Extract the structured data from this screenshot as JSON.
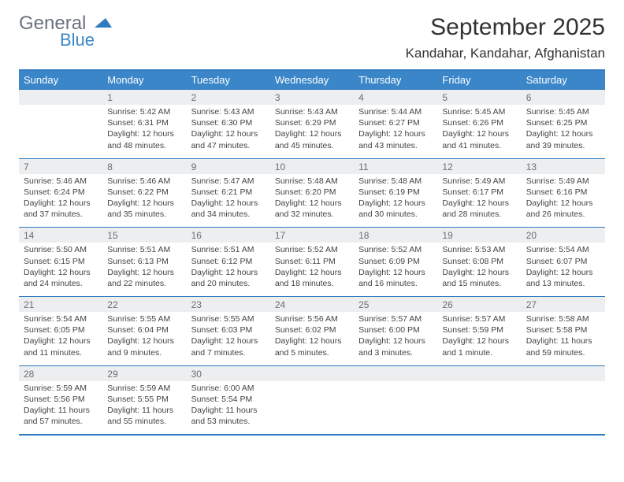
{
  "logo": {
    "text1": "General",
    "text2": "Blue"
  },
  "title": "September 2025",
  "location": "Kandahar, Kandahar, Afghanistan",
  "colors": {
    "header_bg": "#3a86c8",
    "border": "#2f7bbf",
    "daynum_bg": "#eceeef"
  },
  "day_headers": [
    "Sunday",
    "Monday",
    "Tuesday",
    "Wednesday",
    "Thursday",
    "Friday",
    "Saturday"
  ],
  "weeks": [
    {
      "nums": [
        "",
        "1",
        "2",
        "3",
        "4",
        "5",
        "6"
      ],
      "info": [
        "",
        "Sunrise: 5:42 AM\nSunset: 6:31 PM\nDaylight: 12 hours and 48 minutes.",
        "Sunrise: 5:43 AM\nSunset: 6:30 PM\nDaylight: 12 hours and 47 minutes.",
        "Sunrise: 5:43 AM\nSunset: 6:29 PM\nDaylight: 12 hours and 45 minutes.",
        "Sunrise: 5:44 AM\nSunset: 6:27 PM\nDaylight: 12 hours and 43 minutes.",
        "Sunrise: 5:45 AM\nSunset: 6:26 PM\nDaylight: 12 hours and 41 minutes.",
        "Sunrise: 5:45 AM\nSunset: 6:25 PM\nDaylight: 12 hours and 39 minutes."
      ]
    },
    {
      "nums": [
        "7",
        "8",
        "9",
        "10",
        "11",
        "12",
        "13"
      ],
      "info": [
        "Sunrise: 5:46 AM\nSunset: 6:24 PM\nDaylight: 12 hours and 37 minutes.",
        "Sunrise: 5:46 AM\nSunset: 6:22 PM\nDaylight: 12 hours and 35 minutes.",
        "Sunrise: 5:47 AM\nSunset: 6:21 PM\nDaylight: 12 hours and 34 minutes.",
        "Sunrise: 5:48 AM\nSunset: 6:20 PM\nDaylight: 12 hours and 32 minutes.",
        "Sunrise: 5:48 AM\nSunset: 6:19 PM\nDaylight: 12 hours and 30 minutes.",
        "Sunrise: 5:49 AM\nSunset: 6:17 PM\nDaylight: 12 hours and 28 minutes.",
        "Sunrise: 5:49 AM\nSunset: 6:16 PM\nDaylight: 12 hours and 26 minutes."
      ]
    },
    {
      "nums": [
        "14",
        "15",
        "16",
        "17",
        "18",
        "19",
        "20"
      ],
      "info": [
        "Sunrise: 5:50 AM\nSunset: 6:15 PM\nDaylight: 12 hours and 24 minutes.",
        "Sunrise: 5:51 AM\nSunset: 6:13 PM\nDaylight: 12 hours and 22 minutes.",
        "Sunrise: 5:51 AM\nSunset: 6:12 PM\nDaylight: 12 hours and 20 minutes.",
        "Sunrise: 5:52 AM\nSunset: 6:11 PM\nDaylight: 12 hours and 18 minutes.",
        "Sunrise: 5:52 AM\nSunset: 6:09 PM\nDaylight: 12 hours and 16 minutes.",
        "Sunrise: 5:53 AM\nSunset: 6:08 PM\nDaylight: 12 hours and 15 minutes.",
        "Sunrise: 5:54 AM\nSunset: 6:07 PM\nDaylight: 12 hours and 13 minutes."
      ]
    },
    {
      "nums": [
        "21",
        "22",
        "23",
        "24",
        "25",
        "26",
        "27"
      ],
      "info": [
        "Sunrise: 5:54 AM\nSunset: 6:05 PM\nDaylight: 12 hours and 11 minutes.",
        "Sunrise: 5:55 AM\nSunset: 6:04 PM\nDaylight: 12 hours and 9 minutes.",
        "Sunrise: 5:55 AM\nSunset: 6:03 PM\nDaylight: 12 hours and 7 minutes.",
        "Sunrise: 5:56 AM\nSunset: 6:02 PM\nDaylight: 12 hours and 5 minutes.",
        "Sunrise: 5:57 AM\nSunset: 6:00 PM\nDaylight: 12 hours and 3 minutes.",
        "Sunrise: 5:57 AM\nSunset: 5:59 PM\nDaylight: 12 hours and 1 minute.",
        "Sunrise: 5:58 AM\nSunset: 5:58 PM\nDaylight: 11 hours and 59 minutes."
      ]
    },
    {
      "nums": [
        "28",
        "29",
        "30",
        "",
        "",
        "",
        ""
      ],
      "info": [
        "Sunrise: 5:59 AM\nSunset: 5:56 PM\nDaylight: 11 hours and 57 minutes.",
        "Sunrise: 5:59 AM\nSunset: 5:55 PM\nDaylight: 11 hours and 55 minutes.",
        "Sunrise: 6:00 AM\nSunset: 5:54 PM\nDaylight: 11 hours and 53 minutes.",
        "",
        "",
        "",
        ""
      ]
    }
  ]
}
